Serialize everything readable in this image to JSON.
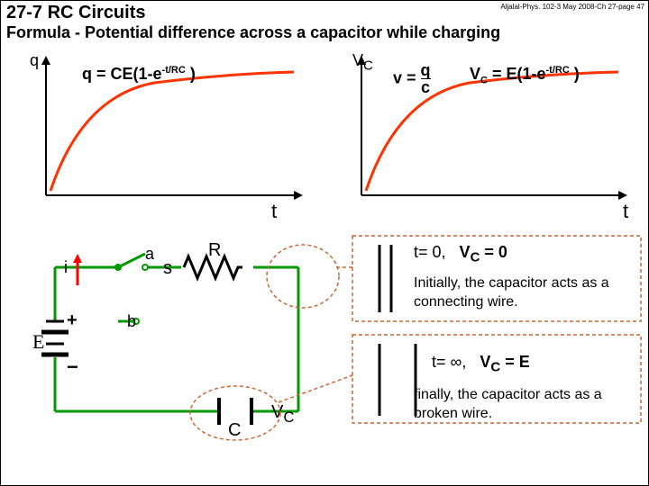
{
  "corner": "Aljalal-Phys. 102-3 May 2008-Ch 27-page 47",
  "heading": "27-7 RC Circuits",
  "subheading": "Formula - Potential difference across a capacitor while charging",
  "graphs": {
    "axis_color": "#000000",
    "curve_color": "#ff3300",
    "curve_width": 3,
    "graph1": {
      "x_label": "t",
      "y_label": "q",
      "formula": "q = CE(1-e<sup>-t/RC</sup> )"
    },
    "graph2": {
      "x_label": "t",
      "y_label": "V",
      "y_sub": "C",
      "formula_pre": "v = ",
      "formula_frac_top": "q",
      "formula_frac_bot": "c",
      "formula2": "V<sub>C</sub> = E(1-e<sup>-t/RC</sup> )"
    }
  },
  "circuit": {
    "line_color": "#009900",
    "component_color": "#000000",
    "labels": {
      "i": "i",
      "a": "a",
      "b": "b",
      "s": "s",
      "R": "R",
      "C": "C",
      "Vc": "V",
      "Vc_sub": "C",
      "plus": "+",
      "minus": "−",
      "E": "E"
    }
  },
  "annotations": {
    "dash_color": "#cc6633",
    "t0": "t= 0,",
    "vc0": "V<sub>C</sub> = 0",
    "text0": "Initially, the capacitor acts as a connecting wire.",
    "tinf": "t= ∞,",
    "vcinf": "V<sub>C</sub> = E",
    "textinf": "finally, the capacitor acts as a broken wire."
  }
}
